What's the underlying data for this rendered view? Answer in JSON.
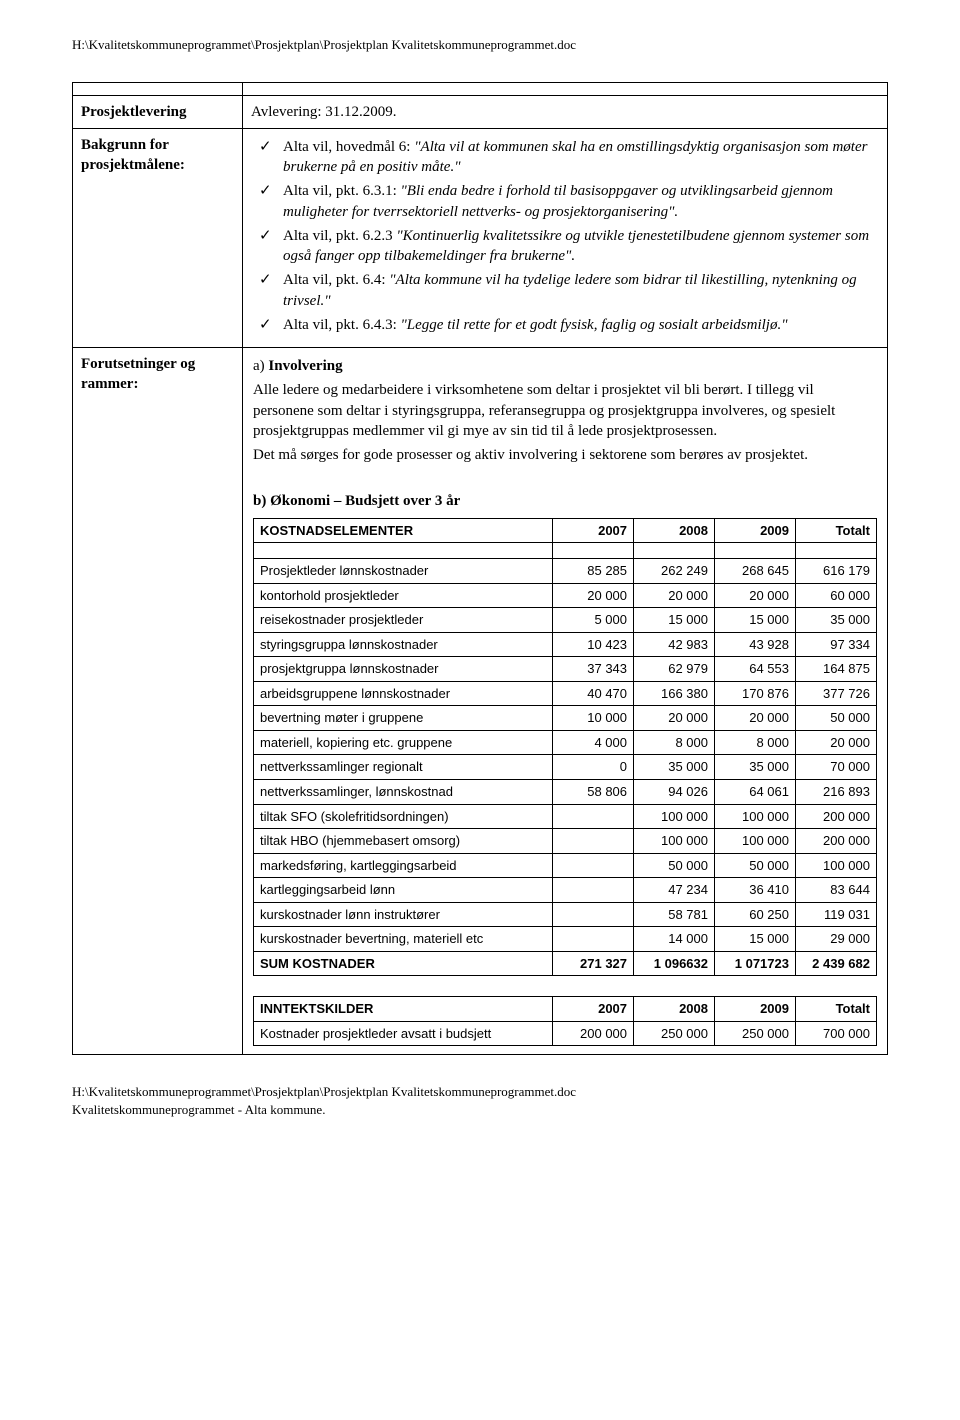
{
  "path_top": "H:\\Kvalitetskommuneprogrammet\\Prosjektplan\\Prosjektplan Kvalitetskommuneprogrammet.doc",
  "path_bottom_1": "H:\\Kvalitetskommuneprogrammet\\Prosjektplan\\Prosjektplan Kvalitetskommuneprogrammet.doc",
  "path_bottom_2": "Kvalitetskommuneprogrammet - Alta kommune.",
  "rows": {
    "r1_label": "Prosjektlevering",
    "r1_value": "Avlevering: 31.12.2009.",
    "r2_label": "Bakgrunn for prosjektmålene:",
    "r3_label": "Forutsetninger og rammer:"
  },
  "bullets": [
    {
      "lead": " Alta vil, hovedmål 6: ",
      "italic": "\"Alta vil at kommunen skal ha en omstillingsdyktig organisasjon som møter brukerne på en positiv måte.\""
    },
    {
      "lead": "Alta vil, pkt. 6.3.1: ",
      "italic": "\"Bli enda bedre i forhold til basisoppgaver og utviklingsarbeid gjennom muligheter for tverrsektoriell nettverks- og prosjektorganisering\"."
    },
    {
      "lead": "Alta vil, pkt. 6.2.3 ",
      "italic": "\"Kontinuerlig kvalitetssikre og utvikle tjenestetilbudene gjennom systemer som også fanger opp tilbakemeldinger fra brukerne\"."
    },
    {
      "lead": "Alta vil, pkt. 6.4: ",
      "italic": "\"Alta kommune vil ha tydelige ledere som bidrar til likestilling, nytenkning og trivsel.\""
    },
    {
      "lead": "Alta vil, pkt. 6.4.3: ",
      "italic": "\"Legge til rette for et godt fysisk, faglig og sosialt arbeidsmiljø.\""
    }
  ],
  "involvering": {
    "prefix": "a)",
    "title": "Involvering",
    "body": "Alle ledere og medarbeidere i virksomhetene som deltar i prosjektet vil bli berørt. I tillegg vil personene som deltar i styringsgruppa, referansegruppa og prosjektgruppa involveres, og spesielt prosjektgruppas medlemmer vil gi mye av sin tid til å lede prosjektprosessen.",
    "body2": "Det må sørges for gode prosesser og aktiv involvering i sektorene som berøres av prosjektet."
  },
  "budget": {
    "prefix": "b)",
    "title": "Økonomi – Budsjett over 3 år",
    "header": [
      "KOSTNADSELEMENTER",
      "2007",
      "2008",
      "2009",
      "Totalt"
    ],
    "rows": [
      [
        "Prosjektleder lønnskostnader",
        "85 285",
        "262 249",
        "268 645",
        "616 179"
      ],
      [
        "kontorhold prosjektleder",
        "20 000",
        "20 000",
        "20 000",
        "60 000"
      ],
      [
        "reisekostnader prosjektleder",
        "5 000",
        "15 000",
        "15 000",
        "35 000"
      ],
      [
        "styringsgruppa lønnskostnader",
        "10 423",
        "42 983",
        "43 928",
        "97 334"
      ],
      [
        "prosjektgruppa lønnskostnader",
        "37 343",
        "62 979",
        "64 553",
        "164 875"
      ],
      [
        "arbeidsgruppene lønnskostnader",
        "40 470",
        "166 380",
        "170 876",
        "377 726"
      ],
      [
        "bevertning møter i gruppene",
        "10 000",
        "20 000",
        "20 000",
        "50 000"
      ],
      [
        "materiell, kopiering etc. gruppene",
        "4 000",
        "8 000",
        "8 000",
        "20 000"
      ],
      [
        "nettverkssamlinger regionalt",
        "0",
        "35 000",
        "35 000",
        "70 000"
      ],
      [
        "nettverkssamlinger, lønnskostnad",
        "58 806",
        "94 026",
        "64 061",
        "216 893"
      ],
      [
        "tiltak SFO (skolefritidsordningen)",
        "",
        "100 000",
        "100 000",
        "200 000"
      ],
      [
        "tiltak HBO (hjemmebasert omsorg)",
        "",
        "100 000",
        "100 000",
        "200 000"
      ],
      [
        "markedsføring, kartleggingsarbeid",
        "",
        "50 000",
        "50 000",
        "100 000"
      ],
      [
        "kartleggingsarbeid lønn",
        "",
        "47 234",
        "36 410",
        "83 644"
      ],
      [
        "kurskostnader lønn instruktører",
        "",
        "58 781",
        "60 250",
        "119 031"
      ],
      [
        "kurskostnader bevertning, materiell etc",
        "",
        "14 000",
        "15 000",
        "29 000"
      ]
    ],
    "sum": [
      "SUM KOSTNADER",
      "271 327",
      "1 096632",
      "1 071723",
      "2 439 682"
    ]
  },
  "income": {
    "header": [
      "INNTEKTSKILDER",
      "2007",
      "2008",
      "2009",
      "Totalt"
    ],
    "row_label": "Kostnader prosjektleder avsatt i budsjett",
    "row": [
      "200 000",
      "250 000",
      "250 000",
      "700 000"
    ]
  },
  "col_widths": {
    "c0": "48%",
    "c1": "13%",
    "c2": "13%",
    "c3": "13%",
    "c4": "13%"
  }
}
